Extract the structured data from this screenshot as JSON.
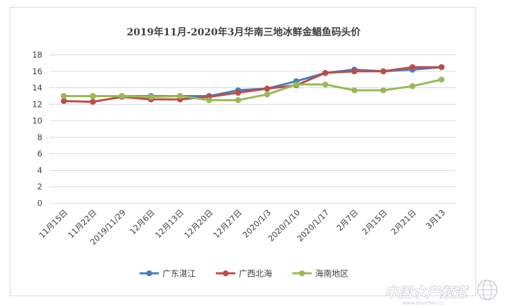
{
  "chart_data": {
    "type": "line",
    "title": "2019年11月-2020年3月华南三地冰鲜金鲳鱼码头价",
    "xlabel": "",
    "ylabel": "",
    "ylim": [
      0,
      18
    ],
    "yticks": [
      0,
      2,
      4,
      6,
      8,
      10,
      12,
      14,
      16,
      18
    ],
    "grid": true,
    "legend_position": "bottom",
    "categories": [
      "11月15日",
      "11月22日",
      "2019/11/29",
      "12月6日",
      "12月13日",
      "12月20日",
      "12月27日",
      "2020/1/3",
      "2020/1/10",
      "2020/1/17",
      "2月7日",
      "2月15日",
      "2月21日",
      "3月13"
    ],
    "series": [
      {
        "name": "广东湛江",
        "color": "#4a7ebb",
        "values": [
          13.0,
          13.0,
          13.0,
          13.0,
          13.0,
          13.0,
          13.7,
          13.9,
          14.8,
          15.8,
          16.2,
          16.0,
          16.2,
          16.5
        ]
      },
      {
        "name": "广西北海",
        "color": "#be4b48",
        "values": [
          12.4,
          12.3,
          12.9,
          12.6,
          12.6,
          12.9,
          13.4,
          13.9,
          14.3,
          15.8,
          16.0,
          16.0,
          16.5,
          16.5
        ]
      },
      {
        "name": "海南地区",
        "color": "#98b954",
        "values": [
          13.0,
          13.0,
          13.0,
          12.9,
          13.0,
          12.5,
          12.5,
          13.2,
          14.4,
          14.4,
          13.7,
          13.7,
          14.2,
          15.0
        ]
      }
    ]
  },
  "watermark": {
    "text": "中国水产频道",
    "sub": "www.shuichan.cc"
  }
}
